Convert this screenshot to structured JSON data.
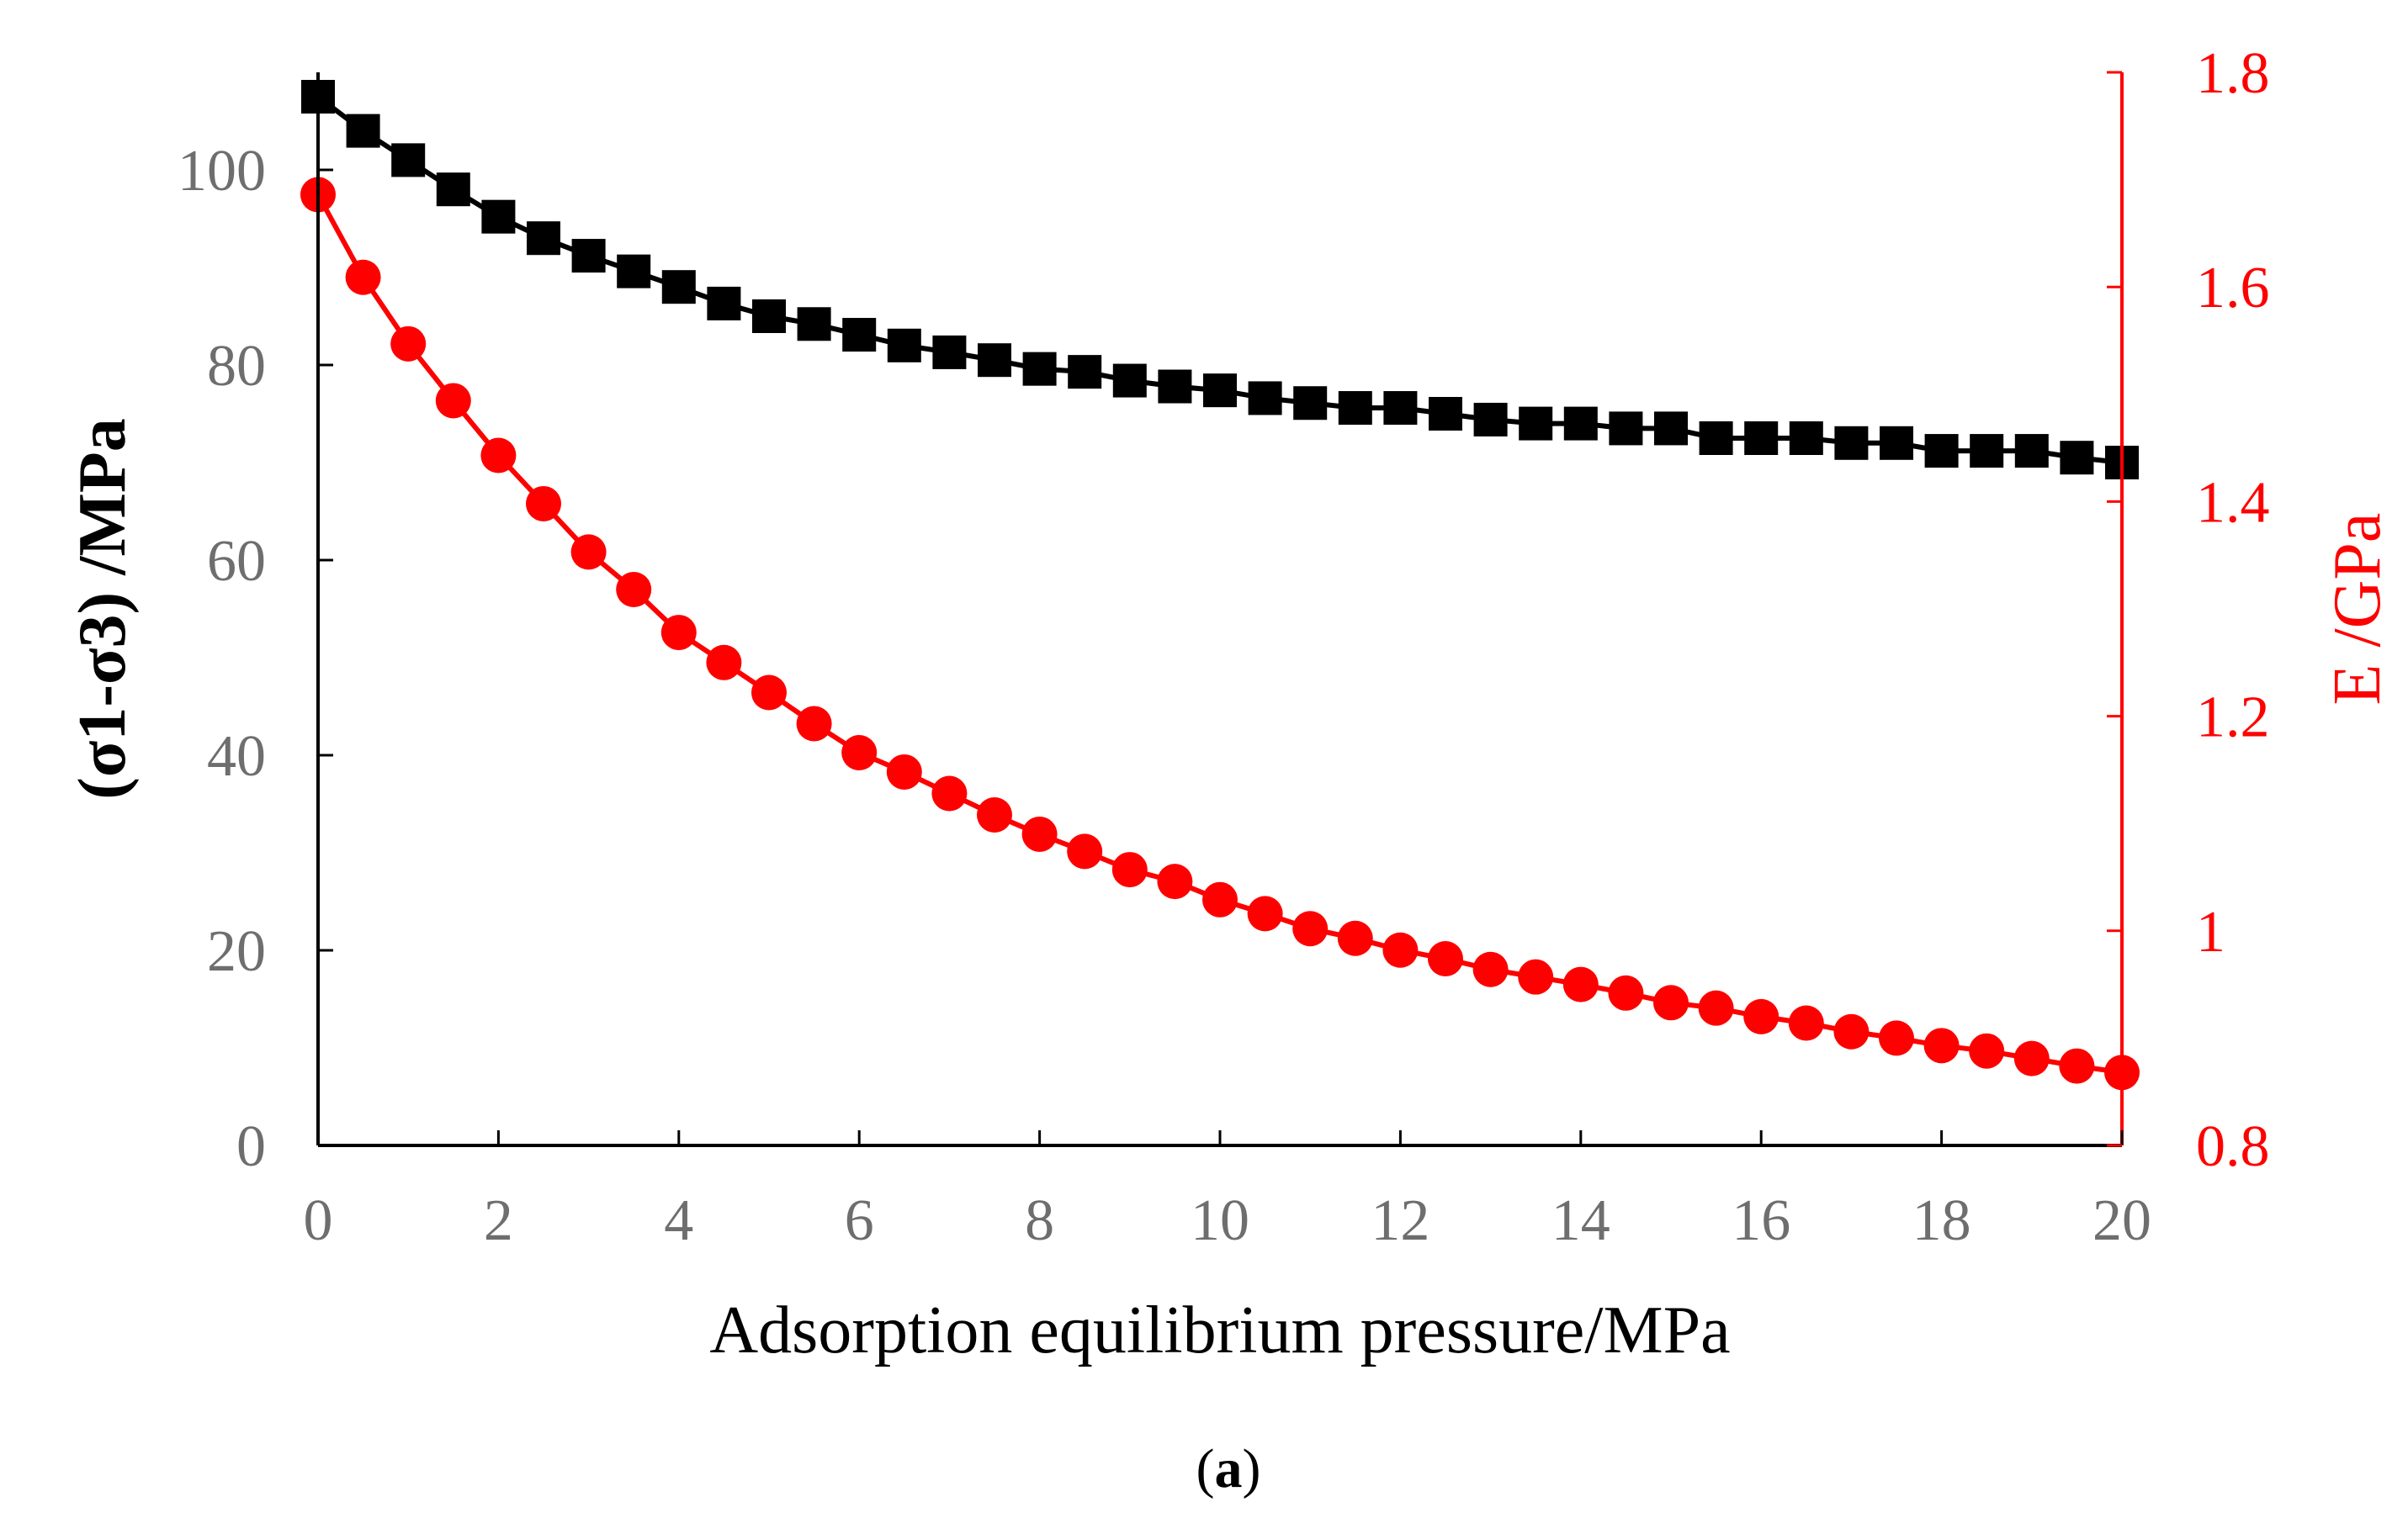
{
  "chart_data": {
    "type": "line",
    "caption": "(a)",
    "caption_bold_part": "a",
    "xlabel": "Adsorption equilibrium pressure/MPa",
    "ylabel_left": "(σ1-σ3) /MPa",
    "ylabel_right": "E /GPa",
    "xlim": [
      0,
      20
    ],
    "ylim_left": [
      0,
      110
    ],
    "ylim_right": [
      0.8,
      1.8
    ],
    "x_ticks": [
      "0",
      "2",
      "4",
      "6",
      "8",
      "10",
      "12",
      "14",
      "16",
      "18",
      "20"
    ],
    "y_left_ticks": [
      "0",
      "20",
      "40",
      "60",
      "80",
      "100"
    ],
    "y_right_ticks": [
      "0.8",
      "1",
      "1.2",
      "1.4",
      "1.6",
      "1.8"
    ],
    "grid": false,
    "colors": {
      "left_series": "#000000",
      "right_series": "#ff0000",
      "axis": "#000000",
      "right_axis": "#ff0000"
    },
    "series": [
      {
        "name": "(σ1-σ3)",
        "axis": "left",
        "marker": "square",
        "x": [
          0,
          0.5,
          1,
          1.5,
          2,
          2.5,
          3,
          3.5,
          4,
          4.5,
          5,
          5.5,
          6,
          6.5,
          7,
          7.5,
          8,
          8.5,
          9,
          9.5,
          10,
          10.5,
          11,
          11.5,
          12,
          12.5,
          13,
          13.5,
          14,
          14.5,
          15,
          15.5,
          16,
          16.5,
          17,
          17.5,
          18,
          18.5,
          19,
          19.5,
          20
        ],
        "values": [
          107.5,
          104,
          101,
          98,
          95.2,
          93,
          91.2,
          89.6,
          88,
          86.3,
          85,
          84.2,
          83.1,
          82,
          81.3,
          80.5,
          79.6,
          79.3,
          78.4,
          77.8,
          77.4,
          76.6,
          76.1,
          75.6,
          75.6,
          75,
          74.4,
          74,
          74,
          73.5,
          73.5,
          72.5,
          72.5,
          72.5,
          72,
          72,
          71.2,
          71.2,
          71.2,
          70.5,
          70
        ]
      },
      {
        "name": "E",
        "axis": "right",
        "marker": "circle",
        "x": [
          0,
          0.5,
          1,
          1.5,
          2,
          2.5,
          3,
          3.5,
          4,
          4.5,
          5,
          5.5,
          6,
          6.5,
          7,
          7.5,
          8,
          8.5,
          9,
          9.5,
          10,
          10.5,
          11,
          11.5,
          12,
          12.5,
          13,
          13.5,
          14,
          14.5,
          15,
          15.5,
          16,
          16.5,
          17,
          17.5,
          18,
          18.5,
          19,
          19.5,
          20
        ],
        "values": [
          1.686,
          1.609,
          1.547,
          1.494,
          1.443,
          1.398,
          1.353,
          1.318,
          1.278,
          1.25,
          1.222,
          1.193,
          1.166,
          1.148,
          1.128,
          1.108,
          1.09,
          1.074,
          1.057,
          1.046,
          1.029,
          1.016,
          1.002,
          0.993,
          0.982,
          0.974,
          0.964,
          0.957,
          0.95,
          0.942,
          0.933,
          0.928,
          0.92,
          0.914,
          0.906,
          0.9,
          0.893,
          0.888,
          0.881,
          0.874,
          0.868
        ]
      }
    ]
  }
}
